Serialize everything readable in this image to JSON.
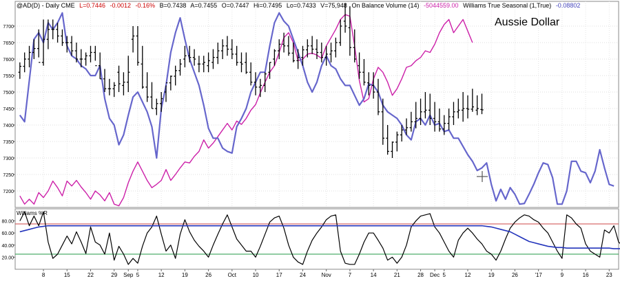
{
  "header": {
    "symbol": "@AD(D) - Daily  CME",
    "last": "L=0.7446",
    "change": "-0.0012",
    "change_pct": "-0.16%",
    "bid": "B=0.7438",
    "ask": "A=0.7455",
    "open": "O=0.7447",
    "hi": "Hi=0.7495",
    "lo": "Lo=0.7433",
    "volume": "V=75,948",
    "obv_label": "On Balance Volume (14)",
    "obv_value": "-5044559.00",
    "wts_label": "Williams True Seasonal (1,True)",
    "wts_value": "-0.08802"
  },
  "chart_title": "Aussie Dollar",
  "lower_panel_label": "Williams %R",
  "colors": {
    "price_bars": "#000000",
    "obv_line": "#cc1fa8",
    "seasonal_line": "#6666cc",
    "wr_line": "#000000",
    "wr_ma_line": "#2233bb",
    "upper_band": "#cc4444",
    "lower_band": "#229944",
    "negative_text": "#cc0000",
    "positive_text": "#0000cc"
  },
  "chart_data": [
    {
      "type": "line",
      "panel": "main",
      "y_ticks": [
        "7700",
        "7650",
        "7600",
        "7550",
        "7500",
        "7450",
        "7400",
        "7350",
        "7300",
        "7250",
        "7200"
      ],
      "ylim": [
        7150,
        7775
      ],
      "x_tick_labels": [
        "8",
        "15",
        "22",
        "29",
        "Sep",
        "5",
        "12",
        "19",
        "26",
        "Oct",
        "10",
        "17",
        "24",
        "Nov",
        "7",
        "14",
        "21",
        "28",
        "Dec",
        "5",
        "12",
        "19",
        "26",
        "'17",
        "9",
        "16",
        "23"
      ],
      "x_tick_index": [
        5,
        10,
        15,
        20,
        23,
        25,
        30,
        35,
        40,
        45,
        50,
        55,
        60,
        65,
        70,
        75,
        80,
        85,
        88,
        90,
        95,
        100,
        105,
        110,
        115,
        120,
        125
      ],
      "x_range": [
        -1,
        127
      ],
      "ohlc": {
        "open": [
          7560,
          7578,
          7600,
          7620,
          7632,
          7590,
          7660,
          7690,
          7690,
          7670,
          7650,
          7650,
          7625,
          7600,
          7600,
          7610,
          7620,
          7580,
          7540,
          7510,
          7510,
          7560,
          7520,
          7530,
          7660,
          7670,
          7585,
          7515,
          7485,
          7450,
          7465,
          7500,
          7528,
          7548,
          7565,
          7600,
          7610,
          7605,
          7585,
          7585,
          7580,
          7590,
          7605,
          7625,
          7640,
          7630,
          7615,
          7590,
          7590,
          7560,
          7530,
          7515,
          7520,
          7560,
          7600,
          7625,
          7645,
          7640,
          7618,
          7595,
          7605,
          7628,
          7640,
          7630,
          7620,
          7605,
          7615,
          7625,
          7650,
          7715,
          7695,
          7635,
          7580,
          7560,
          7528,
          7520,
          7500,
          7440,
          7360,
          7320,
          7348,
          7370,
          7385,
          7392,
          7410,
          7420,
          7440,
          7445,
          7420,
          7410,
          7388,
          7405,
          7425,
          7440,
          7445,
          7450,
          7448,
          7445,
          7447
        ],
        "high": [
          7590,
          7620,
          7640,
          7660,
          7690,
          7720,
          7720,
          7720,
          7710,
          7690,
          7670,
          7670,
          7650,
          7630,
          7620,
          7640,
          7640,
          7620,
          7570,
          7540,
          7530,
          7580,
          7560,
          7610,
          7700,
          7700,
          7640,
          7560,
          7530,
          7480,
          7500,
          7520,
          7550,
          7580,
          7600,
          7640,
          7640,
          7630,
          7610,
          7610,
          7620,
          7630,
          7650,
          7660,
          7670,
          7660,
          7640,
          7620,
          7620,
          7590,
          7560,
          7540,
          7560,
          7590,
          7630,
          7660,
          7680,
          7670,
          7650,
          7630,
          7640,
          7660,
          7670,
          7660,
          7650,
          7640,
          7650,
          7665,
          7720,
          7770,
          7760,
          7690,
          7620,
          7600,
          7560,
          7560,
          7540,
          7480,
          7400,
          7350,
          7380,
          7400,
          7420,
          7440,
          7470,
          7480,
          7500,
          7495,
          7470,
          7450,
          7430,
          7450,
          7470,
          7480,
          7500,
          7490,
          7510,
          7490,
          7495
        ],
        "low": [
          7540,
          7560,
          7575,
          7600,
          7605,
          7580,
          7630,
          7660,
          7650,
          7640,
          7620,
          7610,
          7590,
          7575,
          7580,
          7590,
          7595,
          7540,
          7500,
          7490,
          7485,
          7500,
          7490,
          7500,
          7620,
          7580,
          7510,
          7470,
          7450,
          7430,
          7440,
          7470,
          7505,
          7520,
          7550,
          7575,
          7590,
          7580,
          7560,
          7560,
          7560,
          7570,
          7585,
          7600,
          7610,
          7600,
          7580,
          7560,
          7555,
          7520,
          7490,
          7485,
          7500,
          7540,
          7580,
          7600,
          7620,
          7610,
          7590,
          7570,
          7580,
          7605,
          7615,
          7600,
          7590,
          7580,
          7590,
          7605,
          7640,
          7680,
          7610,
          7590,
          7540,
          7520,
          7490,
          7480,
          7430,
          7340,
          7310,
          7300,
          7320,
          7350,
          7370,
          7380,
          7390,
          7400,
          7420,
          7400,
          7380,
          7380,
          7370,
          7385,
          7400,
          7420,
          7410,
          7420,
          7440,
          7430,
          7433
        ],
        "close": [
          7578,
          7600,
          7620,
          7632,
          7590,
          7660,
          7690,
          7690,
          7670,
          7650,
          7650,
          7625,
          7600,
          7600,
          7610,
          7620,
          7580,
          7540,
          7510,
          7510,
          7520,
          7525,
          7530,
          7560,
          7670,
          7590,
          7515,
          7485,
          7450,
          7465,
          7480,
          7528,
          7548,
          7565,
          7585,
          7610,
          7605,
          7600,
          7585,
          7590,
          7595,
          7605,
          7625,
          7640,
          7630,
          7615,
          7590,
          7585,
          7560,
          7530,
          7515,
          7520,
          7555,
          7590,
          7625,
          7645,
          7640,
          7618,
          7595,
          7605,
          7628,
          7640,
          7630,
          7620,
          7605,
          7615,
          7625,
          7650,
          7700,
          7700,
          7635,
          7600,
          7560,
          7530,
          7520,
          7500,
          7440,
          7360,
          7320,
          7348,
          7370,
          7385,
          7392,
          7410,
          7420,
          7440,
          7445,
          7420,
          7410,
          7388,
          7405,
          7425,
          7440,
          7445,
          7450,
          7448,
          7455,
          7450,
          7446
        ]
      },
      "series": [
        {
          "label": "On Balance Volume (14)",
          "values": [
            7185,
            7160,
            7175,
            7160,
            7195,
            7180,
            7200,
            7230,
            7210,
            7185,
            7230,
            7215,
            7232,
            7212,
            7195,
            7175,
            7200,
            7188,
            7170,
            7195,
            7160,
            7155,
            7180,
            7225,
            7260,
            7288,
            7260,
            7232,
            7210,
            7220,
            7232,
            7265,
            7232,
            7250,
            7270,
            7288,
            7285,
            7305,
            7320,
            7355,
            7330,
            7345,
            7365,
            7385,
            7405,
            7385,
            7412,
            7402,
            7420,
            7445,
            7462,
            7498,
            7530,
            7560,
            7580,
            7620,
            7665,
            7680,
            7650,
            7595,
            7600,
            7615,
            7618,
            7612,
            7602,
            7640,
            7665,
            7690,
            7720,
            7735,
            7730,
            7640,
            7535,
            7470,
            7480,
            7540,
            7575,
            7560,
            7530,
            7490,
            7510,
            7540,
            7575,
            7580,
            7595,
            7605,
            7625,
            7620,
            7645,
            7680,
            7705,
            7720,
            7680,
            7700,
            7720,
            7685,
            7650
          ]
        },
        {
          "label": "Williams True Seasonal (1,True)",
          "values": [
            7430,
            7410,
            7535,
            7660,
            7680,
            7650,
            7710,
            7690,
            7710,
            7740,
            7640,
            7610,
            7600,
            7580,
            7570,
            7550,
            7550,
            7580,
            7480,
            7420,
            7400,
            7340,
            7370,
            7430,
            7485,
            7500,
            7470,
            7440,
            7395,
            7300,
            7450,
            7520,
            7620,
            7680,
            7725,
            7660,
            7600,
            7560,
            7520,
            7460,
            7390,
            7360,
            7360,
            7330,
            7320,
            7315,
            7395,
            7420,
            7450,
            7500,
            7530,
            7560,
            7560,
            7640,
            7710,
            7740,
            7715,
            7700,
            7660,
            7620,
            7580,
            7530,
            7500,
            7530,
            7580,
            7610,
            7580,
            7570,
            7540,
            7520,
            7520,
            7490,
            7460,
            7480,
            7525,
            7520,
            7500,
            7460,
            7440,
            7430,
            7420,
            7400,
            7370,
            7355,
            7410,
            7420,
            7400,
            7430,
            7400,
            7405,
            7380,
            7385,
            7360,
            7360,
            7335,
            7310,
            7290,
            7262,
            7270,
            7285,
            7220,
            7170,
            7205,
            7175,
            7210,
            7190,
            7160,
            7162,
            7190,
            7220,
            7255,
            7285,
            7280,
            7240,
            7160,
            7160,
            7200,
            7290,
            7290,
            7260,
            7255,
            7225,
            7260,
            7325,
            7270,
            7220,
            7215
          ]
        }
      ],
      "annotation": "Aussie Dollar"
    },
    {
      "type": "line",
      "panel": "indicator",
      "title": "Williams %R",
      "y_ticks": [
        "80.00",
        "60.00",
        "40.00",
        "20.00"
      ],
      "ylim": [
        0,
        100
      ],
      "bands": [
        75,
        25
      ],
      "series": [
        {
          "label": "Williams %R",
          "values": [
            80,
            95,
            72,
            88,
            72,
            95,
            45,
            18,
            25,
            40,
            55,
            42,
            62,
            45,
            26,
            70,
            45,
            40,
            25,
            60,
            15,
            38,
            25,
            8,
            18,
            10,
            38,
            60,
            70,
            88,
            58,
            30,
            40,
            18,
            58,
            82,
            62,
            48,
            38,
            30,
            20,
            40,
            58,
            75,
            90,
            70,
            50,
            40,
            30,
            30,
            20,
            38,
            58,
            78,
            85,
            88,
            68,
            40,
            20,
            12,
            8,
            30,
            48,
            60,
            70,
            82,
            88,
            90,
            30,
            10,
            8,
            8,
            25,
            45,
            60,
            60,
            48,
            35,
            15,
            20,
            10,
            20,
            40,
            70,
            80,
            88,
            90,
            92,
            70,
            60,
            45,
            30,
            20,
            48,
            60,
            68,
            60,
            50,
            42,
            30,
            25,
            15,
            30,
            50,
            68,
            78,
            85,
            90,
            88,
            82,
            78,
            68,
            60,
            45,
            30,
            18,
            90,
            85,
            75,
            68,
            42,
            30,
            25,
            20,
            65,
            60,
            72,
            45,
            38
          ]
        },
        {
          "label": "Williams %R MA",
          "values": [
            62,
            64,
            66,
            68,
            70,
            71,
            72,
            72,
            72,
            72,
            72,
            72,
            72,
            72,
            72,
            72,
            72,
            72,
            72,
            72,
            72,
            72,
            72,
            72,
            72,
            72,
            72,
            72,
            72,
            72,
            72,
            72,
            72,
            72,
            72,
            72,
            72,
            72,
            72,
            72,
            72,
            72,
            72,
            72,
            72,
            72,
            72,
            72,
            72,
            72,
            72,
            72,
            72,
            72,
            72,
            72,
            72,
            72,
            72,
            72,
            72,
            72,
            72,
            72,
            72,
            72,
            72,
            72,
            72,
            72,
            72,
            72,
            72,
            72,
            72,
            72,
            72,
            72,
            72,
            72,
            72,
            72,
            72,
            72,
            72,
            72,
            72,
            72,
            72,
            72,
            72,
            72,
            72,
            72,
            72,
            72,
            72,
            72,
            72,
            71,
            70,
            68,
            66,
            64,
            62,
            58,
            54,
            50,
            46,
            44,
            42,
            40,
            38,
            37,
            36,
            36,
            35,
            35,
            35,
            35,
            35,
            35,
            35,
            35,
            35,
            35,
            34,
            34,
            34
          ]
        }
      ]
    }
  ]
}
